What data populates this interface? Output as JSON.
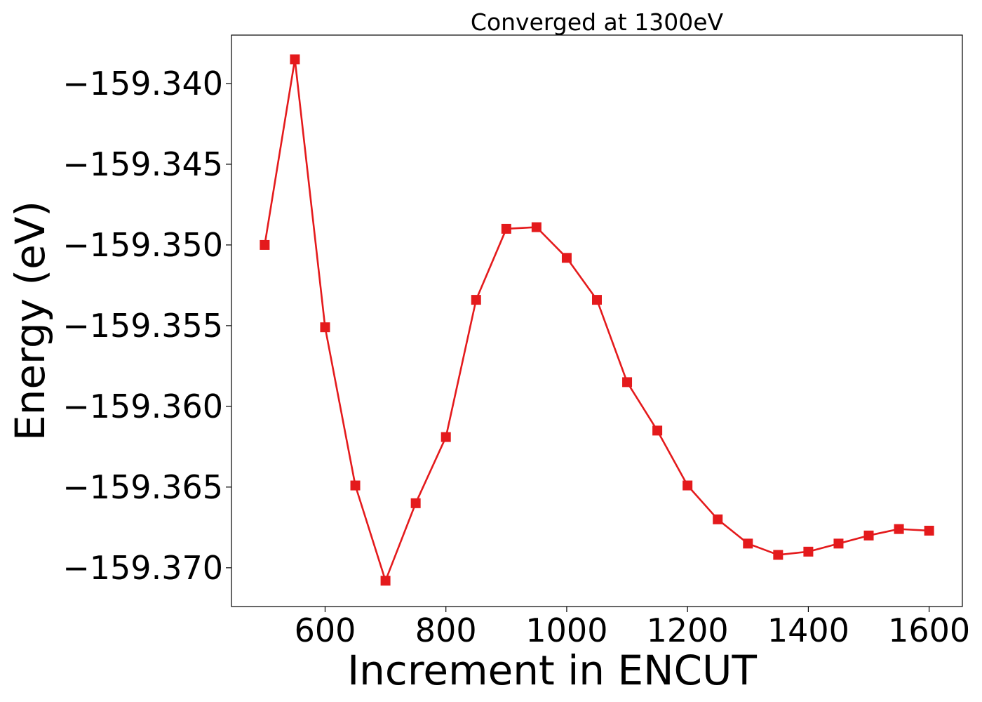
{
  "chart_data": {
    "type": "line",
    "title": "Converged at 1300eV",
    "xlabel": "Increment in ENCUT",
    "ylabel": "Energy (eV)",
    "xlim": [
      445,
      1655
    ],
    "ylim": [
      -159.3724,
      -159.337
    ],
    "xticks": [
      600,
      800,
      1000,
      1200,
      1400,
      1600
    ],
    "xtick_labels": [
      "600",
      "800",
      "1000",
      "1200",
      "1400",
      "1600"
    ],
    "yticks": [
      -159.34,
      -159.345,
      -159.35,
      -159.355,
      -159.36,
      -159.365,
      -159.37
    ],
    "ytick_labels": [
      "−159.340",
      "−159.345",
      "−159.350",
      "−159.355",
      "−159.360",
      "−159.365",
      "−159.370"
    ],
    "grid": false,
    "series": [
      {
        "color": "#e41a1c",
        "marker": "square",
        "x": [
          500,
          550,
          600,
          650,
          700,
          750,
          800,
          850,
          900,
          950,
          1000,
          1050,
          1100,
          1150,
          1200,
          1250,
          1300,
          1350,
          1400,
          1450,
          1500,
          1550,
          1600
        ],
        "y": [
          -159.35,
          -159.3385,
          -159.3551,
          -159.3649,
          -159.3708,
          -159.366,
          -159.3619,
          -159.3534,
          -159.349,
          -159.3489,
          -159.3508,
          -159.3534,
          -159.3585,
          -159.3615,
          -159.3649,
          -159.367,
          -159.3685,
          -159.3692,
          -159.369,
          -159.3685,
          -159.368,
          -159.3676,
          -159.3677
        ]
      }
    ]
  }
}
